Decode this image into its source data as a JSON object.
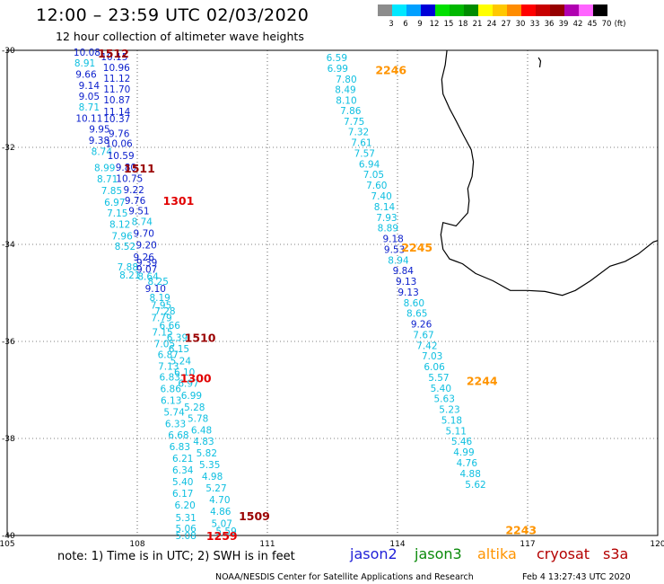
{
  "header": {
    "title": "12:00 – 23:59 UTC 02/03/2020",
    "subtitle": "12 hour collection of altimeter wave heights"
  },
  "legend": {
    "unit": "(ft)",
    "bins": [
      {
        "label": "3",
        "color": "#8c8c8c"
      },
      {
        "label": "6",
        "color": "#00e8ff"
      },
      {
        "label": "9",
        "color": "#00a0ff"
      },
      {
        "label": "12",
        "color": "#0000d8"
      },
      {
        "label": "15",
        "color": "#00e000"
      },
      {
        "label": "18",
        "color": "#00b800"
      },
      {
        "label": "21",
        "color": "#008c00"
      },
      {
        "label": "24",
        "color": "#ffff00"
      },
      {
        "label": "27",
        "color": "#ffc800"
      },
      {
        "label": "30",
        "color": "#ff8c00"
      },
      {
        "label": "33",
        "color": "#ff0000"
      },
      {
        "label": "36",
        "color": "#c80000"
      },
      {
        "label": "39",
        "color": "#960000"
      },
      {
        "label": "42",
        "color": "#b000b0"
      },
      {
        "label": "45",
        "color": "#ff64ff"
      },
      {
        "label": "70",
        "color": "#000000"
      }
    ]
  },
  "axes": {
    "lat_labels": [
      "-30",
      "-32",
      "-34",
      "-36",
      "-38",
      "-40"
    ],
    "lon_labels": [
      "105",
      "108",
      "111",
      "114",
      "117",
      "120"
    ],
    "lat_range": [
      -40,
      -30
    ],
    "lon_range": [
      105,
      120
    ],
    "grid": true
  },
  "colors": {
    "band_6_9": "#0ebfe0",
    "band_9_12": "#0a1ecc",
    "jason2": "#1f1fd8",
    "jason3": "#0a8a0a",
    "altika": "#ff9400",
    "cryosat": "#b40000",
    "s3a": "#b40000",
    "time_red": "#e10000",
    "time_darkred": "#9a0000",
    "time_orange": "#ff9400",
    "coast": "#000000",
    "grid": "#000000"
  },
  "tracks": [
    {
      "name": "west",
      "points": [
        {
          "lon": 106.84,
          "lat": -30.04,
          "value": "10.08"
        },
        {
          "lon": 107.47,
          "lat": -30.13,
          "value": "10.15"
        },
        {
          "lon": 106.79,
          "lat": -30.26,
          "value": "8.91"
        },
        {
          "lon": 107.52,
          "lat": -30.35,
          "value": "10.96"
        },
        {
          "lon": 106.82,
          "lat": -30.49,
          "value": "9.66"
        },
        {
          "lon": 107.53,
          "lat": -30.57,
          "value": "11.12"
        },
        {
          "lon": 106.89,
          "lat": -30.72,
          "value": "9.14"
        },
        {
          "lon": 107.53,
          "lat": -30.8,
          "value": "11.70"
        },
        {
          "lon": 106.89,
          "lat": -30.94,
          "value": "9.05"
        },
        {
          "lon": 107.53,
          "lat": -31.02,
          "value": "10.87"
        },
        {
          "lon": 106.89,
          "lat": -31.17,
          "value": "8.71"
        },
        {
          "lon": 107.53,
          "lat": -31.26,
          "value": "11.14"
        },
        {
          "lon": 106.89,
          "lat": -31.4,
          "value": "10.11"
        },
        {
          "lon": 107.53,
          "lat": -31.41,
          "value": "10.37"
        },
        {
          "lon": 107.13,
          "lat": -31.62,
          "value": "9.95"
        },
        {
          "lon": 107.58,
          "lat": -31.71,
          "value": "9.76"
        },
        {
          "lon": 107.12,
          "lat": -31.85,
          "value": "9.38"
        },
        {
          "lon": 107.58,
          "lat": -31.92,
          "value": "10.06"
        },
        {
          "lon": 107.18,
          "lat": -32.08,
          "value": "8.74"
        },
        {
          "lon": 107.62,
          "lat": -32.17,
          "value": "10.59"
        },
        {
          "lon": 107.25,
          "lat": -32.42,
          "value": "8.99"
        },
        {
          "lon": 107.74,
          "lat": -32.41,
          "value": "9.80"
        },
        {
          "lon": 107.31,
          "lat": -32.65,
          "value": "8.71"
        },
        {
          "lon": 107.82,
          "lat": -32.64,
          "value": "10.75"
        },
        {
          "lon": 107.41,
          "lat": -32.89,
          "value": "7.85"
        },
        {
          "lon": 107.92,
          "lat": -32.87,
          "value": "9.22"
        },
        {
          "lon": 107.48,
          "lat": -33.13,
          "value": "6.97"
        },
        {
          "lon": 107.95,
          "lat": -33.09,
          "value": "9.76"
        },
        {
          "lon": 107.54,
          "lat": -33.35,
          "value": "7.15"
        },
        {
          "lon": 108.04,
          "lat": -33.31,
          "value": "9.51"
        },
        {
          "lon": 107.6,
          "lat": -33.58,
          "value": "8.12"
        },
        {
          "lon": 108.11,
          "lat": -33.53,
          "value": "8.74"
        },
        {
          "lon": 107.65,
          "lat": -33.82,
          "value": "7.96"
        },
        {
          "lon": 108.15,
          "lat": -33.77,
          "value": "9.70"
        },
        {
          "lon": 107.72,
          "lat": -34.04,
          "value": "8.52"
        },
        {
          "lon": 108.21,
          "lat": -34.01,
          "value": "9.20"
        },
        {
          "lon": 108.15,
          "lat": -34.26,
          "value": "9.26"
        },
        {
          "lon": 108.22,
          "lat": -34.37,
          "value": "9.39"
        },
        {
          "lon": 107.78,
          "lat": -34.46,
          "value": "7.88"
        },
        {
          "lon": 108.22,
          "lat": -34.51,
          "value": "9.07"
        },
        {
          "lon": 107.83,
          "lat": -34.63,
          "value": "8.21"
        },
        {
          "lon": 108.25,
          "lat": -34.66,
          "value": "8.64"
        },
        {
          "lon": 108.48,
          "lat": -34.76,
          "value": "8.25"
        },
        {
          "lon": 108.42,
          "lat": -34.91,
          "value": "9.10"
        },
        {
          "lon": 108.52,
          "lat": -35.09,
          "value": "8.19"
        },
        {
          "lon": 108.55,
          "lat": -35.25,
          "value": "7.95"
        },
        {
          "lon": 108.64,
          "lat": -35.37,
          "value": "7.28"
        },
        {
          "lon": 108.56,
          "lat": -35.51,
          "value": "7.79"
        },
        {
          "lon": 108.75,
          "lat": -35.67,
          "value": "6.66"
        },
        {
          "lon": 108.58,
          "lat": -35.81,
          "value": "7.15"
        },
        {
          "lon": 108.92,
          "lat": -35.92,
          "value": "6.39"
        },
        {
          "lon": 108.63,
          "lat": -36.05,
          "value": "7.05"
        },
        {
          "lon": 108.96,
          "lat": -36.15,
          "value": "6.15"
        },
        {
          "lon": 108.71,
          "lat": -36.27,
          "value": "6.87"
        },
        {
          "lon": 109.0,
          "lat": -36.4,
          "value": "5.24"
        },
        {
          "lon": 108.72,
          "lat": -36.51,
          "value": "7.13"
        },
        {
          "lon": 109.09,
          "lat": -36.63,
          "value": "6.10"
        },
        {
          "lon": 108.75,
          "lat": -36.73,
          "value": "6.83"
        },
        {
          "lon": 109.18,
          "lat": -36.86,
          "value": "6.97"
        },
        {
          "lon": 108.77,
          "lat": -36.97,
          "value": "6.86"
        },
        {
          "lon": 109.25,
          "lat": -37.11,
          "value": "6.99"
        },
        {
          "lon": 108.78,
          "lat": -37.21,
          "value": "6.13"
        },
        {
          "lon": 109.32,
          "lat": -37.35,
          "value": "5.28"
        },
        {
          "lon": 108.85,
          "lat": -37.45,
          "value": "5.74"
        },
        {
          "lon": 109.4,
          "lat": -37.58,
          "value": "5.78"
        },
        {
          "lon": 108.88,
          "lat": -37.69,
          "value": "6.33"
        },
        {
          "lon": 109.48,
          "lat": -37.82,
          "value": "6.48"
        },
        {
          "lon": 108.95,
          "lat": -37.93,
          "value": "6.68"
        },
        {
          "lon": 109.53,
          "lat": -38.06,
          "value": "4.83"
        },
        {
          "lon": 108.98,
          "lat": -38.17,
          "value": "6.83"
        },
        {
          "lon": 109.6,
          "lat": -38.3,
          "value": "5.82"
        },
        {
          "lon": 109.05,
          "lat": -38.41,
          "value": "6.21"
        },
        {
          "lon": 109.67,
          "lat": -38.54,
          "value": "5.35"
        },
        {
          "lon": 109.05,
          "lat": -38.65,
          "value": "6.34"
        },
        {
          "lon": 109.73,
          "lat": -38.78,
          "value": "4.98"
        },
        {
          "lon": 109.05,
          "lat": -38.89,
          "value": "5.40"
        },
        {
          "lon": 109.82,
          "lat": -39.02,
          "value": "5.27"
        },
        {
          "lon": 109.05,
          "lat": -39.13,
          "value": "6.17"
        },
        {
          "lon": 109.9,
          "lat": -39.26,
          "value": "4.70"
        },
        {
          "lon": 109.1,
          "lat": -39.37,
          "value": "6.20"
        },
        {
          "lon": 109.92,
          "lat": -39.5,
          "value": "4.86"
        },
        {
          "lon": 109.12,
          "lat": -39.63,
          "value": "5.31"
        },
        {
          "lon": 109.95,
          "lat": -39.75,
          "value": "5.07"
        },
        {
          "lon": 109.12,
          "lat": -39.85,
          "value": "5.06"
        },
        {
          "lon": 110.05,
          "lat": -39.91,
          "value": "5.59"
        },
        {
          "lon": 109.12,
          "lat": -40.0,
          "value": "5.08"
        }
      ]
    },
    {
      "name": "east",
      "points": [
        {
          "lon": 112.6,
          "lat": -30.15,
          "value": "6.59"
        },
        {
          "lon": 112.62,
          "lat": -30.37,
          "value": "6.99"
        },
        {
          "lon": 112.82,
          "lat": -30.59,
          "value": "7.80"
        },
        {
          "lon": 112.8,
          "lat": -30.81,
          "value": "8.49"
        },
        {
          "lon": 112.82,
          "lat": -31.03,
          "value": "8.10"
        },
        {
          "lon": 112.92,
          "lat": -31.24,
          "value": "7.86"
        },
        {
          "lon": 113.0,
          "lat": -31.46,
          "value": "7.75"
        },
        {
          "lon": 113.1,
          "lat": -31.68,
          "value": "7.32"
        },
        {
          "lon": 113.17,
          "lat": -31.9,
          "value": "7.61"
        },
        {
          "lon": 113.24,
          "lat": -32.12,
          "value": "7.57"
        },
        {
          "lon": 113.35,
          "lat": -32.34,
          "value": "6.94"
        },
        {
          "lon": 113.45,
          "lat": -32.56,
          "value": "7.05"
        },
        {
          "lon": 113.52,
          "lat": -32.78,
          "value": "7.60"
        },
        {
          "lon": 113.63,
          "lat": -33.0,
          "value": "7.40"
        },
        {
          "lon": 113.7,
          "lat": -33.22,
          "value": "8.14"
        },
        {
          "lon": 113.75,
          "lat": -33.44,
          "value": "7.93"
        },
        {
          "lon": 113.78,
          "lat": -33.66,
          "value": "8.89"
        },
        {
          "lon": 113.9,
          "lat": -33.88,
          "value": "9.18"
        },
        {
          "lon": 113.93,
          "lat": -34.1,
          "value": "9.53"
        },
        {
          "lon": 114.02,
          "lat": -34.32,
          "value": "8.94"
        },
        {
          "lon": 114.13,
          "lat": -34.54,
          "value": "9.84"
        },
        {
          "lon": 114.2,
          "lat": -34.76,
          "value": "9.13"
        },
        {
          "lon": 114.25,
          "lat": -34.98,
          "value": "9.13"
        },
        {
          "lon": 114.38,
          "lat": -35.2,
          "value": "8.60"
        },
        {
          "lon": 114.45,
          "lat": -35.42,
          "value": "8.65"
        },
        {
          "lon": 114.55,
          "lat": -35.64,
          "value": "9.26"
        },
        {
          "lon": 114.6,
          "lat": -35.86,
          "value": "7.67"
        },
        {
          "lon": 114.68,
          "lat": -36.08,
          "value": "7.42"
        },
        {
          "lon": 114.8,
          "lat": -36.3,
          "value": "7.03"
        },
        {
          "lon": 114.85,
          "lat": -36.52,
          "value": "6.06"
        },
        {
          "lon": 114.95,
          "lat": -36.74,
          "value": "5.57"
        },
        {
          "lon": 115.0,
          "lat": -36.96,
          "value": "5.40"
        },
        {
          "lon": 115.08,
          "lat": -37.18,
          "value": "5.63"
        },
        {
          "lon": 115.2,
          "lat": -37.4,
          "value": "5.23"
        },
        {
          "lon": 115.25,
          "lat": -37.62,
          "value": "5.18"
        },
        {
          "lon": 115.35,
          "lat": -37.84,
          "value": "5.11"
        },
        {
          "lon": 115.48,
          "lat": -38.06,
          "value": "5.46"
        },
        {
          "lon": 115.53,
          "lat": -38.28,
          "value": "4.99"
        },
        {
          "lon": 115.6,
          "lat": -38.5,
          "value": "4.76"
        },
        {
          "lon": 115.68,
          "lat": -38.72,
          "value": "4.88"
        },
        {
          "lon": 115.8,
          "lat": -38.94,
          "value": "5.62"
        }
      ]
    }
  ],
  "times": [
    {
      "label": "1512",
      "lon": 107.45,
      "lat": -30.06,
      "color": "darkred"
    },
    {
      "label": "1511",
      "lon": 108.05,
      "lat": -32.43,
      "color": "darkred"
    },
    {
      "label": "1301",
      "lon": 108.95,
      "lat": -33.09,
      "color": "red"
    },
    {
      "label": "1510",
      "lon": 109.45,
      "lat": -35.92,
      "color": "darkred"
    },
    {
      "label": "1300",
      "lon": 109.35,
      "lat": -36.75,
      "color": "red"
    },
    {
      "label": "1509",
      "lon": 110.7,
      "lat": -39.59,
      "color": "darkred"
    },
    {
      "label": "1259",
      "lon": 109.95,
      "lat": -40.0,
      "color": "red"
    },
    {
      "label": "2246",
      "lon": 113.85,
      "lat": -30.4,
      "color": "orange"
    },
    {
      "label": "2245",
      "lon": 114.45,
      "lat": -34.06,
      "color": "orange"
    },
    {
      "label": "2244",
      "lon": 115.95,
      "lat": -36.81,
      "color": "orange"
    },
    {
      "label": "2243",
      "lon": 116.85,
      "lat": -39.88,
      "color": "orange"
    }
  ],
  "footer": {
    "note": "note: 1) Time is in UTC; 2) SWH is in feet",
    "missions": [
      "jason2",
      "jason3",
      "altika",
      "cryosat",
      "s3a"
    ],
    "credit": "NOAA/NESDIS Center for Satellite Applications and Research",
    "timestamp": "Feb  4 13:27:43 UTC 2020"
  }
}
